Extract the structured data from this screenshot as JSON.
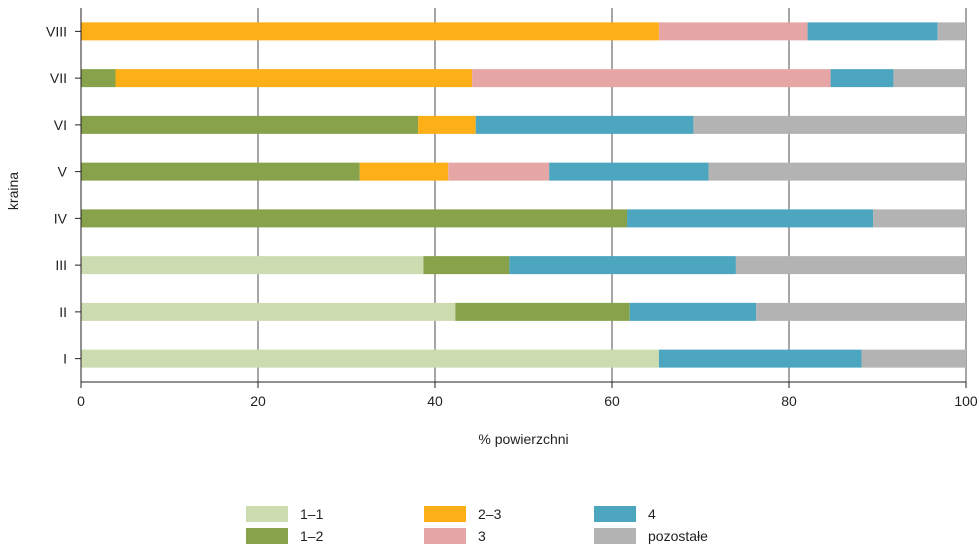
{
  "chart_data": {
    "type": "bar",
    "orientation": "horizontal",
    "stacked": true,
    "categories": [
      "I",
      "II",
      "III",
      "IV",
      "V",
      "VI",
      "VII",
      "VIII"
    ],
    "series": [
      {
        "name": "1–1",
        "color": "#cddcb0",
        "values": [
          65.3,
          42.3,
          38.7,
          0,
          0,
          0,
          0,
          0
        ]
      },
      {
        "name": "1–2",
        "color": "#87a24b",
        "values": [
          0,
          19.7,
          9.7,
          61.7,
          31.5,
          38.1,
          3.9,
          0
        ]
      },
      {
        "name": "2–3",
        "color": "#fcaf17",
        "values": [
          0,
          0,
          0,
          0,
          10.0,
          6.5,
          40.3,
          65.3
        ]
      },
      {
        "name": "3",
        "color": "#e6a6a6",
        "values": [
          0,
          0,
          0,
          0,
          11.4,
          0,
          40.5,
          16.8
        ]
      },
      {
        "name": "4",
        "color": "#4ca6bf",
        "values": [
          22.9,
          14.3,
          25.6,
          27.8,
          18.0,
          24.6,
          7.1,
          14.7
        ]
      },
      {
        "name": "pozostałe",
        "color": "#b3b3b3",
        "values": [
          11.8,
          23.7,
          26.0,
          10.5,
          29.1,
          30.8,
          8.2,
          3.2
        ]
      }
    ],
    "xlabel": "% powierzchni",
    "ylabel": "kraina",
    "xlim": [
      0,
      100
    ],
    "xticks": [
      0,
      20,
      40,
      60,
      80,
      100
    ],
    "grid": "vertical",
    "legend_position": "bottom"
  }
}
